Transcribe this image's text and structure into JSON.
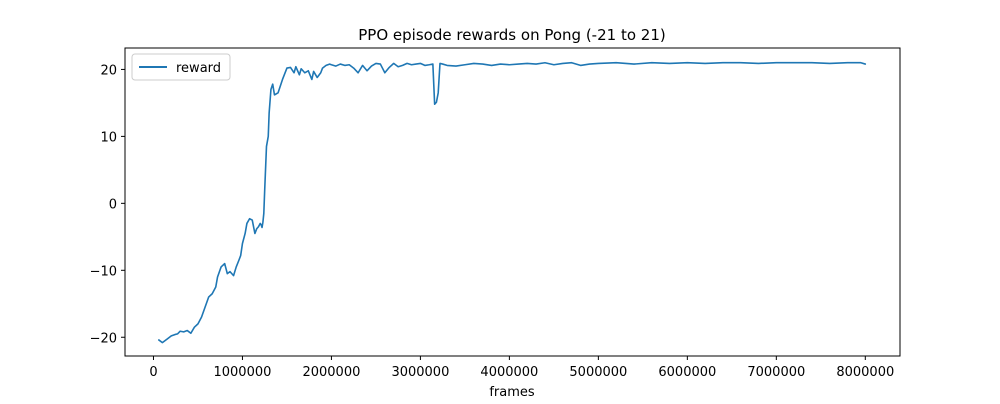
{
  "chart_data": {
    "type": "line",
    "title": "PPO episode rewards on Pong (-21 to 21)",
    "xlabel": "frames",
    "ylabel": "",
    "xlim": [
      -320000,
      8390000
    ],
    "ylim": [
      -22.8,
      23.2
    ],
    "xticks": [
      0,
      1000000,
      2000000,
      3000000,
      4000000,
      5000000,
      6000000,
      7000000,
      8000000
    ],
    "xtick_labels": [
      "0",
      "1000000",
      "2000000",
      "3000000",
      "4000000",
      "5000000",
      "6000000",
      "7000000",
      "8000000"
    ],
    "yticks": [
      -20,
      -10,
      0,
      10,
      20
    ],
    "ytick_labels": [
      "−20",
      "−10",
      "0",
      "10",
      "20"
    ],
    "grid": false,
    "legend_position": "upper-left",
    "series": [
      {
        "name": "reward",
        "color": "#1f77b4",
        "x": [
          60000,
          100000,
          130000,
          160000,
          200000,
          240000,
          270000,
          300000,
          340000,
          380000,
          420000,
          460000,
          500000,
          540000,
          580000,
          620000,
          660000,
          700000,
          720000,
          760000,
          800000,
          830000,
          860000,
          900000,
          930000,
          960000,
          980000,
          1000000,
          1030000,
          1050000,
          1080000,
          1110000,
          1140000,
          1160000,
          1180000,
          1200000,
          1210000,
          1220000,
          1230000,
          1240000,
          1250000,
          1270000,
          1290000,
          1300000,
          1320000,
          1340000,
          1360000,
          1400000,
          1450000,
          1500000,
          1540000,
          1580000,
          1600000,
          1640000,
          1660000,
          1700000,
          1740000,
          1780000,
          1800000,
          1840000,
          1880000,
          1900000,
          1940000,
          1980000,
          2000000,
          2050000,
          2100000,
          2150000,
          2200000,
          2250000,
          2300000,
          2350000,
          2400000,
          2450000,
          2500000,
          2550000,
          2600000,
          2650000,
          2700000,
          2750000,
          2800000,
          2850000,
          2900000,
          2950000,
          3000000,
          3050000,
          3100000,
          3140000,
          3160000,
          3180000,
          3200000,
          3220000,
          3250000,
          3300000,
          3400000,
          3500000,
          3600000,
          3700000,
          3800000,
          3900000,
          4000000,
          4100000,
          4200000,
          4300000,
          4400000,
          4500000,
          4600000,
          4700000,
          4800000,
          4900000,
          5000000,
          5200000,
          5400000,
          5600000,
          5800000,
          6000000,
          6200000,
          6400000,
          6600000,
          6800000,
          7000000,
          7200000,
          7400000,
          7600000,
          7800000,
          7950000,
          8000000
        ],
        "y": [
          -20.4,
          -20.8,
          -20.5,
          -20.2,
          -19.8,
          -19.6,
          -19.5,
          -19.1,
          -19.2,
          -19.0,
          -19.4,
          -18.5,
          -18.0,
          -17.0,
          -15.5,
          -14.0,
          -13.5,
          -12.5,
          -11.0,
          -9.5,
          -9.0,
          -10.5,
          -10.2,
          -10.8,
          -9.5,
          -8.5,
          -7.8,
          -6.0,
          -4.5,
          -3.0,
          -2.3,
          -2.5,
          -4.5,
          -3.8,
          -3.5,
          -3.0,
          -3.2,
          -3.6,
          -2.8,
          -1.5,
          2.0,
          8.5,
          10.0,
          13.5,
          17.0,
          17.8,
          16.2,
          16.5,
          18.5,
          20.2,
          20.3,
          19.5,
          20.4,
          19.2,
          20.1,
          19.5,
          19.8,
          18.5,
          19.7,
          18.8,
          19.5,
          20.2,
          20.6,
          20.8,
          20.7,
          20.5,
          20.8,
          20.6,
          20.7,
          20.2,
          19.5,
          20.6,
          19.8,
          20.5,
          20.9,
          20.8,
          19.5,
          20.3,
          20.9,
          20.4,
          20.6,
          20.9,
          20.7,
          20.8,
          20.9,
          20.6,
          20.7,
          20.8,
          14.8,
          15.1,
          16.5,
          20.9,
          20.8,
          20.6,
          20.5,
          20.7,
          20.9,
          20.8,
          20.6,
          20.8,
          20.7,
          20.8,
          20.9,
          20.8,
          21.0,
          20.7,
          20.9,
          21.0,
          20.6,
          20.8,
          20.9,
          21.0,
          20.8,
          21.0,
          20.9,
          21.0,
          20.9,
          21.0,
          21.0,
          20.9,
          21.0,
          21.0,
          21.0,
          20.9,
          21.0,
          21.0,
          20.8
        ]
      }
    ]
  }
}
